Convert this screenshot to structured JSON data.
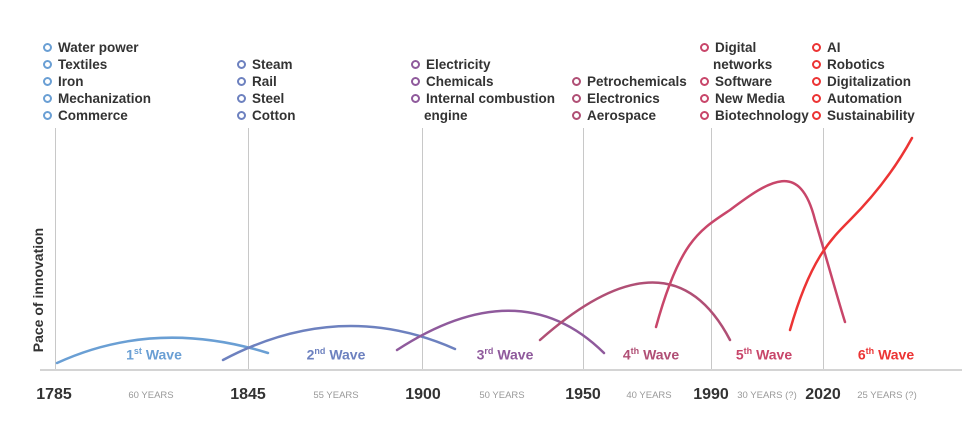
{
  "y_axis_label": "Pace of innovation",
  "waves": [
    {
      "label_num": "1",
      "label_sup": "st",
      "label_word": "Wave",
      "color": "#6a9fd4",
      "items": [
        "Water power",
        "Textiles",
        "Iron",
        "Mechanization",
        "Commerce"
      ],
      "start_year": "1785",
      "duration": "60 YEARS"
    },
    {
      "label_num": "2",
      "label_sup": "nd",
      "label_word": "Wave",
      "color": "#6d81bf",
      "items": [
        "Steam",
        "Rail",
        "Steel",
        "Cotton"
      ],
      "start_year": "1845",
      "duration": "55 YEARS"
    },
    {
      "label_num": "3",
      "label_sup": "rd",
      "label_word": "Wave",
      "color": "#8f5a9c",
      "items": [
        "Electricity",
        "Chemicals",
        "Internal combustion",
        "engine"
      ],
      "start_year": "1900",
      "duration": "50 YEARS"
    },
    {
      "label_num": "4",
      "label_sup": "th",
      "label_word": "Wave",
      "color": "#b04f75",
      "items": [
        "Petrochemicals",
        "Electronics",
        "Aerospace"
      ],
      "start_year": "1950",
      "duration": "40 YEARS"
    },
    {
      "label_num": "5",
      "label_sup": "th",
      "label_word": "Wave",
      "color": "#c8466a",
      "items": [
        "Digital",
        "networks",
        "Software",
        "New Media",
        "Biotechnology"
      ],
      "start_year": "1990",
      "duration": "30 YEARS (?)"
    },
    {
      "label_num": "6",
      "label_sup": "th",
      "label_word": "Wave",
      "color": "#ec3434",
      "items": [
        "AI",
        "Robotics",
        "Digitalization",
        "Automation",
        "Sustainability"
      ],
      "start_year": "2020",
      "duration": "25 YEARS (?)"
    }
  ]
}
